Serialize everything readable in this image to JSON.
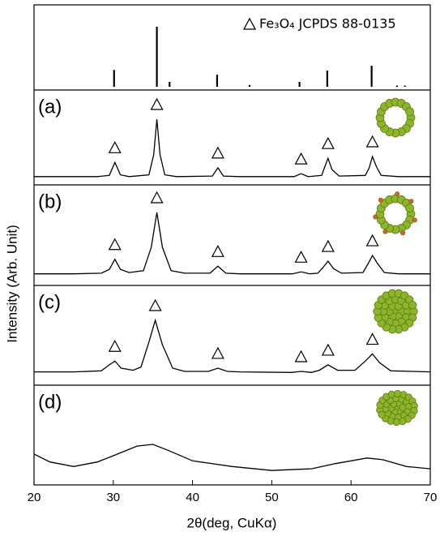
{
  "chart_data": {
    "type": "stacked-line",
    "xlabel": "2θ(deg, CuKα)",
    "ylabel": "Intensity (Arb. Unit)",
    "xlim": [
      20,
      70
    ],
    "xticks": [
      20,
      30,
      40,
      50,
      60,
      70
    ],
    "reference": {
      "type": "stem",
      "legend": "Fe₃O₄ JCPDS 88-0135",
      "color": "#000000",
      "ylim": [
        0,
        100
      ],
      "x": [
        30.1,
        35.5,
        37.1,
        43.1,
        47.2,
        53.5,
        57.0,
        62.6,
        65.8,
        66.8
      ],
      "values": [
        28,
        100,
        8,
        20,
        3,
        8,
        27,
        35,
        2,
        2
      ]
    },
    "panels": [
      {
        "label": "(a)",
        "type": "line",
        "color": "#000000",
        "ylim": [
          0,
          100
        ],
        "x": [
          20,
          25,
          28,
          29.5,
          30.2,
          30.9,
          32,
          34.5,
          35.1,
          35.5,
          35.9,
          36.5,
          38,
          42.5,
          43.2,
          43.9,
          46,
          52.8,
          53.7,
          54.6,
          56.3,
          56.7,
          57.1,
          57.6,
          58.5,
          61.8,
          62.3,
          62.7,
          63.2,
          63.8,
          66,
          70
        ],
        "values": [
          3,
          3,
          3,
          5,
          27,
          6,
          3,
          6,
          40,
          100,
          40,
          6,
          3,
          4,
          18,
          4,
          3,
          3,
          8,
          3,
          5,
          20,
          34,
          15,
          4,
          5,
          18,
          37,
          20,
          5,
          3,
          3
        ],
        "peak_markers": [
          30.2,
          35.5,
          43.2,
          53.7,
          57.1,
          62.7
        ]
      },
      {
        "label": "(b)",
        "type": "line",
        "color": "#000000",
        "ylim": [
          0,
          100
        ],
        "x": [
          20,
          25,
          28.5,
          29.5,
          30.2,
          30.9,
          32,
          33.8,
          34.8,
          35.5,
          36.2,
          37.3,
          39,
          42.2,
          43.2,
          44.2,
          46,
          52.6,
          53.7,
          54.8,
          55.8,
          56.4,
          57.1,
          57.8,
          58.8,
          61.5,
          62.2,
          62.7,
          63.3,
          64.2,
          66,
          70
        ],
        "values": [
          3,
          3,
          4,
          10,
          26,
          10,
          5,
          8,
          45,
          100,
          45,
          8,
          4,
          4,
          15,
          4,
          3,
          3,
          6,
          3,
          4,
          12,
          23,
          11,
          4,
          5,
          20,
          32,
          20,
          5,
          3,
          3
        ],
        "peak_markers": [
          30.2,
          35.5,
          43.2,
          53.7,
          57.1,
          62.7
        ]
      },
      {
        "label": "(c)",
        "type": "line",
        "color": "#000000",
        "ylim": [
          0,
          100
        ],
        "x": [
          20,
          25,
          28.5,
          29.5,
          30.2,
          31,
          32.5,
          33.5,
          34.5,
          35.3,
          36.2,
          37.5,
          39,
          42,
          43.2,
          44.4,
          46,
          52.5,
          53.7,
          55,
          56,
          57.1,
          58.3,
          60.5,
          61.8,
          62.7,
          63.6,
          65,
          70
        ],
        "values": [
          5,
          5,
          7,
          18,
          25,
          12,
          8,
          14,
          60,
          100,
          55,
          12,
          6,
          6,
          12,
          6,
          5,
          4,
          6,
          4,
          8,
          18,
          8,
          8,
          25,
          38,
          22,
          7,
          5
        ],
        "peak_markers": [
          30.2,
          35.3,
          43.2,
          53.7,
          57.1,
          62.7
        ]
      },
      {
        "label": "(d)",
        "type": "line",
        "color": "#000000",
        "ylim": [
          0,
          100
        ],
        "x": [
          20,
          22,
          25,
          28,
          30,
          33,
          35,
          37,
          40,
          45,
          50,
          55,
          58,
          62,
          64,
          67,
          70
        ],
        "values": [
          43,
          29,
          21,
          29,
          40,
          57,
          60,
          49,
          31,
          21,
          14,
          17,
          26,
          36,
          33,
          21,
          17
        ]
      }
    ]
  }
}
